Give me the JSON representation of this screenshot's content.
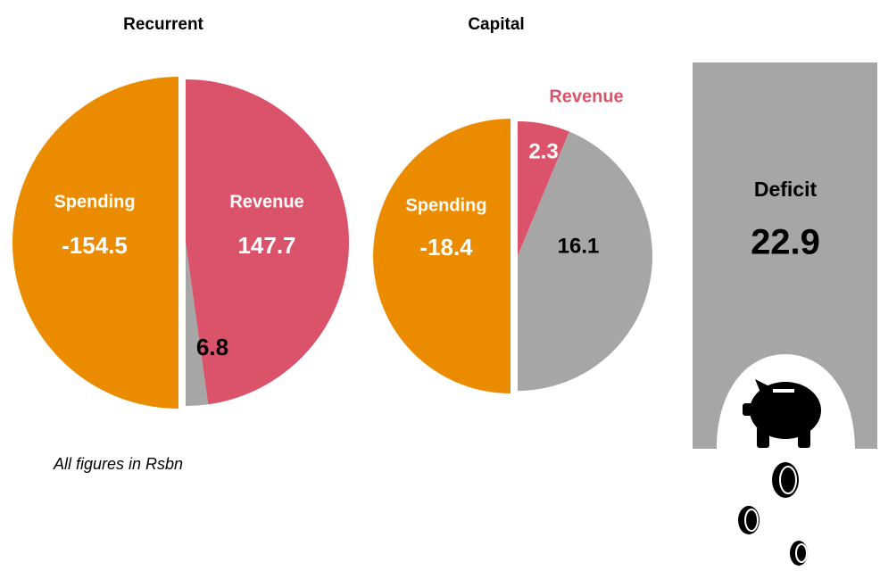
{
  "chart_data": [
    {
      "type": "pie",
      "title": "Recurrent",
      "segments": [
        {
          "name": "Spending",
          "value": -154.5,
          "color": "#eb8c00"
        },
        {
          "name": "Revenue",
          "value": 147.7,
          "color": "#db536a"
        },
        {
          "value": 6.8,
          "color": "#a6a6a6"
        }
      ]
    },
    {
      "type": "pie",
      "title": "Capital",
      "segments": [
        {
          "name": "Spending",
          "value": -18.4,
          "color": "#eb8c00"
        },
        {
          "name": "Revenue",
          "value": 2.3,
          "color": "#db536a"
        },
        {
          "value": 16.1,
          "color": "#a6a6a6"
        }
      ]
    }
  ],
  "deficit": {
    "label": "Deficit",
    "value": 22.9,
    "color": "#a6a6a6"
  },
  "note": "All figures in Rsbn"
}
